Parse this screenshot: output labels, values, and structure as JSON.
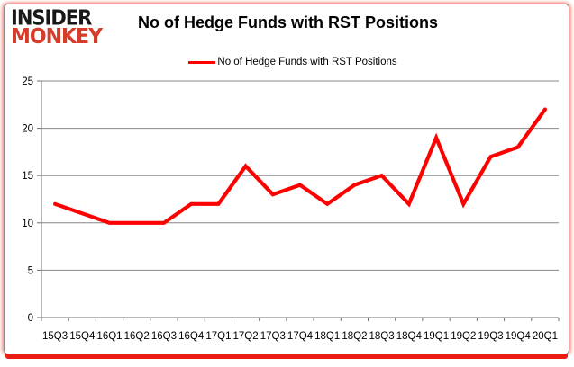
{
  "logo": {
    "line1": "INSIDER",
    "line2": "MONKEY"
  },
  "header": {
    "title": "No of Hedge Funds with RST Positions"
  },
  "legend": {
    "label": "No of Hedge Funds with RST Positions"
  },
  "chart_data": {
    "type": "line",
    "title": "No of Hedge Funds with RST Positions",
    "categories": [
      "15Q3",
      "15Q4",
      "16Q1",
      "16Q2",
      "16Q3",
      "16Q4",
      "17Q1",
      "17Q2",
      "17Q3",
      "17Q4",
      "18Q1",
      "18Q2",
      "18Q3",
      "18Q4",
      "19Q1",
      "19Q2",
      "19Q3",
      "19Q4",
      "20Q1"
    ],
    "series": [
      {
        "name": "No of Hedge Funds with RST Positions",
        "values": [
          12,
          11,
          10,
          10,
          10,
          12,
          12,
          16,
          13,
          14,
          12,
          14,
          15,
          12,
          19,
          12,
          17,
          18,
          22
        ]
      }
    ],
    "ylim": [
      0,
      25
    ],
    "yticks": [
      0,
      5,
      10,
      15,
      20,
      25
    ],
    "grid": true,
    "legend_position": "top-center",
    "xlabel": "",
    "ylabel": "",
    "line_color": "#fe0000",
    "grid_color": "#878787",
    "axis_color": "#6e6e6e",
    "text_color": "#000000"
  },
  "colors": {
    "accent_red": "#ee1b12",
    "logo_red": "#d63c29",
    "card_border": "#8f8f8f",
    "background": "#ffffff"
  }
}
